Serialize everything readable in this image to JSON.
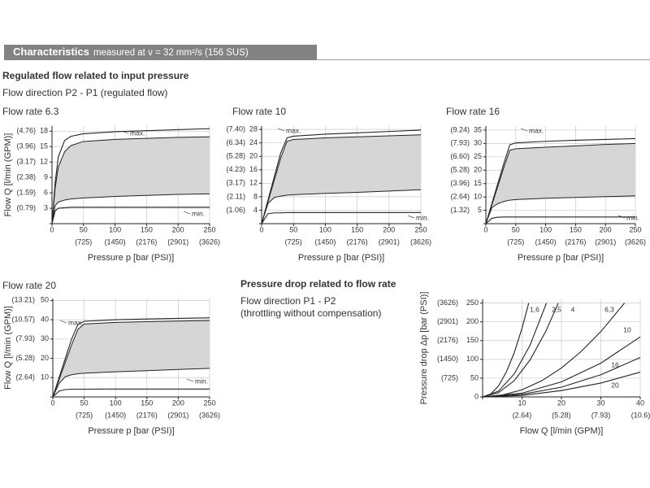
{
  "header": {
    "title": "Characteristics",
    "subtitle": "measured at ν = 32 mm²/s (156 SUS)"
  },
  "section1": {
    "title": "Regulated flow related to input pressure",
    "subtitle": "Flow direction P2 - P1 (regulated flow)"
  },
  "section2": {
    "title": "Pressure drop related to flow rate",
    "lines": [
      "Flow direction P1 - P2",
      "(throttling without compensation)"
    ]
  },
  "chart_data": [
    {
      "type": "line",
      "title": "Flow rate 6.3",
      "x_label": "Pressure p [bar (PSI)]",
      "y_label": "Flow Q [l/min (GPM)]",
      "x": [
        0,
        5,
        10,
        20,
        30,
        50,
        100,
        150,
        200,
        250
      ],
      "xlim": [
        0,
        250
      ],
      "xticks": [
        0,
        50,
        100,
        150,
        200,
        250
      ],
      "x2lim": [
        0,
        3626
      ],
      "x2ticks": [
        {
          "value": 725,
          "label": "(725)"
        },
        {
          "value": 1450,
          "label": "(1450)"
        },
        {
          "value": 2176,
          "label": "(2176)"
        },
        {
          "value": 2901,
          "label": "(2901)"
        },
        {
          "value": 3626,
          "label": "(3626)"
        }
      ],
      "ylim": [
        0,
        19
      ],
      "yticks": [
        3,
        6,
        9,
        12,
        15,
        18
      ],
      "y2lim": [
        0,
        5.02
      ],
      "y2ticks": [
        {
          "value": 0.79,
          "label": "(0.79)"
        },
        {
          "value": 1.59,
          "label": "(1.59)"
        },
        {
          "value": 2.38,
          "label": "(2.38)"
        },
        {
          "value": 3.17,
          "label": "(3.17)"
        },
        {
          "value": 3.96,
          "label": "(3.96)"
        },
        {
          "value": 4.76,
          "label": "(4.76)"
        }
      ],
      "grid": true,
      "bands": [
        {
          "color": "#d6d6d6",
          "upper": [
            0,
            7,
            11,
            14,
            15.2,
            16,
            16.4,
            16.6,
            16.8,
            16.9
          ],
          "lower": [
            0,
            3.5,
            4.2,
            4.6,
            4.8,
            5,
            5.3,
            5.5,
            5.7,
            5.8
          ]
        }
      ],
      "series": [
        {
          "color": "#222222",
          "values": [
            0,
            8,
            13,
            16.2,
            17,
            17.5,
            17.9,
            18.1,
            18.3,
            18.5
          ]
        },
        {
          "color": "#222222",
          "values": [
            0,
            2.5,
            3,
            3.1,
            3.2,
            3.2,
            3.2,
            3.2,
            3.2,
            3.2
          ]
        }
      ],
      "annotations": [
        "max.",
        "min."
      ]
    },
    {
      "type": "line",
      "title": "Flow rate 10",
      "x_label": "Pressure p [bar (PSI)]",
      "x": [
        0,
        10,
        20,
        30,
        40,
        50,
        100,
        150,
        200,
        250
      ],
      "xlim": [
        0,
        250
      ],
      "xticks": [
        0,
        50,
        100,
        150,
        200,
        250
      ],
      "x2lim": [
        0,
        3626
      ],
      "x2ticks": [
        {
          "value": 725,
          "label": "(725)"
        },
        {
          "value": 1450,
          "label": "(1450)"
        },
        {
          "value": 2176,
          "label": "(2176)"
        },
        {
          "value": 2901,
          "label": "(2901)"
        },
        {
          "value": 3626,
          "label": "(3626)"
        }
      ],
      "ylim": [
        0,
        29
      ],
      "yticks": [
        4,
        8,
        12,
        16,
        20,
        24,
        28
      ],
      "y2lim": [
        0,
        7.66
      ],
      "y2ticks": [
        {
          "value": 1.06,
          "label": "(1.06)"
        },
        {
          "value": 2.11,
          "label": "(2.11)"
        },
        {
          "value": 3.17,
          "label": "(3.17)"
        },
        {
          "value": 4.23,
          "label": "(4.23)"
        },
        {
          "value": 5.28,
          "label": "(5.28)"
        },
        {
          "value": 6.34,
          "label": "(6.34)"
        },
        {
          "value": 7.4,
          "label": "(7.40)"
        }
      ],
      "grid": true,
      "bands": [
        {
          "color": "#d6d6d6",
          "upper": [
            0,
            6.5,
            13,
            19.5,
            24.5,
            25,
            25.5,
            25.8,
            26.1,
            26.4
          ],
          "lower": [
            0,
            6,
            7.8,
            8.2,
            8.5,
            8.6,
            9,
            9.3,
            9.7,
            10.1
          ]
        }
      ],
      "series": [
        {
          "color": "#222222",
          "values": [
            0,
            7,
            14,
            21,
            25.5,
            26,
            26.6,
            27,
            27.4,
            27.8
          ]
        },
        {
          "color": "#222222",
          "values": [
            0,
            3,
            3.2,
            3.2,
            3.3,
            3.3,
            3.3,
            3.3,
            3.3,
            3.3
          ]
        }
      ],
      "annotations": [
        "max.",
        "min."
      ]
    },
    {
      "type": "line",
      "title": "Flow rate 16",
      "x_label": "Pressure p [bar (PSI)]",
      "x": [
        0,
        10,
        20,
        30,
        40,
        50,
        100,
        150,
        200,
        250
      ],
      "xlim": [
        0,
        250
      ],
      "xticks": [
        0,
        50,
        100,
        150,
        200,
        250
      ],
      "x2lim": [
        0,
        3626
      ],
      "x2ticks": [
        {
          "value": 725,
          "label": "(725)"
        },
        {
          "value": 1450,
          "label": "(1450)"
        },
        {
          "value": 2176,
          "label": "(2176)"
        },
        {
          "value": 2901,
          "label": "(2901)"
        },
        {
          "value": 3626,
          "label": "(3626)"
        }
      ],
      "ylim": [
        0,
        36.5
      ],
      "yticks": [
        5,
        10,
        15,
        20,
        25,
        30,
        35
      ],
      "y2lim": [
        0,
        9.64
      ],
      "y2ticks": [
        {
          "value": 1.32,
          "label": "(1.32)"
        },
        {
          "value": 2.64,
          "label": "(2.64)"
        },
        {
          "value": 3.96,
          "label": "(3.96)"
        },
        {
          "value": 5.28,
          "label": "(5.28)"
        },
        {
          "value": 6.6,
          "label": "(6.60)"
        },
        {
          "value": 7.93,
          "label": "(7.93)"
        },
        {
          "value": 9.24,
          "label": "(9.24)"
        }
      ],
      "grid": true,
      "bands": [
        {
          "color": "#d6d6d6",
          "upper": [
            0,
            7,
            14,
            21,
            27.5,
            28,
            28.6,
            29.1,
            29.6,
            30
          ],
          "lower": [
            0,
            6,
            7.5,
            8.3,
            8.8,
            9,
            9.5,
            9.8,
            10.1,
            10.4
          ]
        }
      ],
      "series": [
        {
          "color": "#222222",
          "values": [
            0,
            7.5,
            15,
            22.5,
            29.5,
            30.2,
            30.8,
            31.2,
            31.5,
            31.8
          ]
        },
        {
          "color": "#222222",
          "values": [
            0,
            2,
            2.4,
            2.5,
            2.5,
            2.5,
            2.5,
            2.5,
            2.5,
            2.5
          ]
        }
      ],
      "annotations": [
        "max.",
        "min."
      ]
    },
    {
      "type": "line",
      "title": "Flow rate 20",
      "x_label": "Pressure p [bar (PSI)]",
      "y_label": "Flow Q [l/min (GPM)]",
      "x": [
        0,
        10,
        20,
        30,
        40,
        50,
        100,
        150,
        200,
        250
      ],
      "xlim": [
        0,
        250
      ],
      "xticks": [
        0,
        50,
        100,
        150,
        200,
        250
      ],
      "x2lim": [
        0,
        3626
      ],
      "x2ticks": [
        {
          "value": 725,
          "label": "(725)"
        },
        {
          "value": 1450,
          "label": "(1450)"
        },
        {
          "value": 2176,
          "label": "(2176)"
        },
        {
          "value": 2901,
          "label": "(2901)"
        },
        {
          "value": 3626,
          "label": "(3626)"
        }
      ],
      "ylim": [
        0,
        51
      ],
      "yticks": [
        10,
        20,
        30,
        40,
        50
      ],
      "y2lim": [
        0,
        13.47
      ],
      "y2ticks": [
        {
          "value": 2.64,
          "label": "(2.64)"
        },
        {
          "value": 5.28,
          "label": "(5.28)"
        },
        {
          "value": 7.93,
          "label": "(7.93)"
        },
        {
          "value": 10.57,
          "label": "(10.57)"
        },
        {
          "value": 13.21,
          "label": "(13.21)"
        }
      ],
      "grid": true,
      "bands": [
        {
          "color": "#d6d6d6",
          "upper": [
            0,
            9,
            18,
            27,
            35,
            37.8,
            38.6,
            39,
            39.3,
            39.6
          ],
          "lower": [
            0,
            7,
            10.5,
            11.5,
            12,
            12.3,
            13,
            13.6,
            14.2,
            14.8
          ]
        }
      ],
      "series": [
        {
          "color": "#222222",
          "values": [
            0,
            10,
            20,
            30,
            37.5,
            39.2,
            40,
            40.4,
            40.7,
            41
          ]
        },
        {
          "color": "#222222",
          "values": [
            0,
            3,
            3.8,
            4,
            4,
            4,
            4.1,
            4.1,
            4.1,
            4.1
          ]
        }
      ],
      "annotations": [
        "max.",
        "min."
      ]
    },
    {
      "type": "line",
      "x_label": "Flow Q [l/min (GPM)]",
      "y_label": "Pressure drop Δp [bar (PSI)]",
      "xlim": [
        0,
        40
      ],
      "xticks": [
        10,
        20,
        30,
        40
      ],
      "x2lim": [
        0,
        10.57
      ],
      "x2ticks": [
        {
          "value": 2.64,
          "label": "(2.64)"
        },
        {
          "value": 5.28,
          "label": "(5.28)"
        },
        {
          "value": 7.93,
          "label": "(7.93)"
        },
        {
          "value": 10.6,
          "label": "(10.6)"
        }
      ],
      "ylim": [
        0,
        260
      ],
      "yticks": [
        0,
        50,
        100,
        150,
        200,
        250
      ],
      "y2lim": [
        0,
        3771
      ],
      "y2ticks": [
        {
          "value": 725,
          "label": "(725)"
        },
        {
          "value": 1450,
          "label": "(1450)"
        },
        {
          "value": 2176,
          "label": "(2176)"
        },
        {
          "value": 2901,
          "label": "(2901)"
        },
        {
          "value": 3626,
          "label": "(3626)"
        }
      ],
      "grid": true,
      "series": [
        {
          "name": "1,6",
          "color": "#222222",
          "x": [
            0,
            2,
            4,
            6,
            8,
            10,
            11.7
          ],
          "values": [
            0,
            7,
            29,
            66,
            117,
            183,
            250
          ]
        },
        {
          "name": "2,5",
          "color": "#222222",
          "x": [
            0,
            4,
            8,
            12,
            16.2
          ],
          "values": [
            0,
            15,
            61,
            137,
            250
          ]
        },
        {
          "name": "4",
          "color": "#222222",
          "x": [
            0,
            4,
            8,
            12,
            16,
            19.2
          ],
          "values": [
            0,
            11,
            43,
            98,
            174,
            250
          ]
        },
        {
          "name": "6,3",
          "color": "#222222",
          "x": [
            0,
            5,
            10,
            15,
            20,
            25,
            30,
            36
          ],
          "values": [
            0,
            5,
            19,
            43,
            77,
            121,
            174,
            250
          ]
        },
        {
          "name": "10",
          "color": "#222222",
          "x": [
            0,
            10,
            20,
            30,
            40
          ],
          "values": [
            0,
            10,
            40,
            90,
            160
          ]
        },
        {
          "name": "16",
          "color": "#222222",
          "x": [
            0,
            10,
            20,
            30,
            40
          ],
          "values": [
            0,
            7,
            26,
            59,
            105
          ]
        },
        {
          "name": "20",
          "color": "#222222",
          "x": [
            0,
            10,
            20,
            30,
            40
          ],
          "values": [
            0,
            4,
            17,
            37,
            66
          ]
        }
      ]
    }
  ]
}
